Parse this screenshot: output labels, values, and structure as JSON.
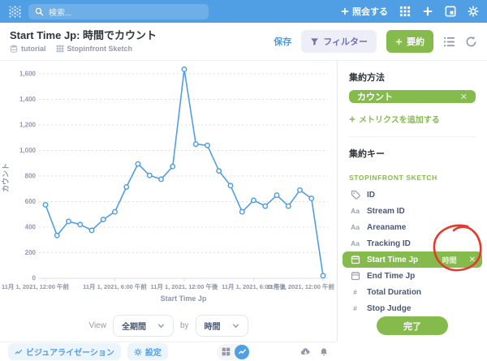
{
  "header": {
    "search_placeholder": "検索...",
    "new_question_label": "照会する"
  },
  "title_bar": {
    "title": "Start Time Jp: 時間でカウント",
    "database": "tutorial",
    "table": "Stopinfront Sketch",
    "save_label": "保存",
    "filter_label": "フィルター",
    "summarize_label": "要約"
  },
  "chart_data": {
    "type": "line",
    "title": "",
    "xlabel": "Start Time Jp",
    "ylabel": "カウント",
    "x_tick_labels": [
      "11月 1, 2021, 12:00 午前",
      "11月 1, 2021, 6:00 午前",
      "11月 1, 2021, 12:00 午後",
      "11月 1, 2021, 6:00 午後",
      "11月 2, 2021, 12:00 午前"
    ],
    "x_tick_indices": [
      0,
      6,
      12,
      18,
      24
    ],
    "y_ticks": [
      0,
      200,
      400,
      600,
      800,
      1000,
      1200,
      1400,
      1600
    ],
    "ylim": [
      0,
      1700
    ],
    "grid": "dashed-horizontal",
    "line_color": "#509EE3",
    "marker": "open-circle",
    "values": [
      575,
      335,
      445,
      420,
      375,
      460,
      520,
      715,
      895,
      805,
      775,
      875,
      1635,
      1050,
      1040,
      840,
      725,
      520,
      610,
      565,
      650,
      565,
      690,
      625,
      20
    ]
  },
  "view_controls": {
    "view_label": "View",
    "range_value": "全期間",
    "by_label": "by",
    "granularity_value": "時間"
  },
  "bottom_bar": {
    "visualization_label": "ビジュアライゼーション",
    "settings_label": "設定"
  },
  "sidebar": {
    "aggregation_heading": "集約方法",
    "aggregation_value": "カウント",
    "add_metric_label": "メトリクスを追加する",
    "groupby_heading": "集約キー",
    "table_heading": "STOPINFRONT SKETCH",
    "fields": [
      {
        "label": "ID",
        "icon": "tag",
        "selected": false
      },
      {
        "label": "Stream ID",
        "icon": "text",
        "selected": false
      },
      {
        "label": "Areaname",
        "icon": "text",
        "selected": false
      },
      {
        "label": "Tracking ID",
        "icon": "text",
        "selected": false
      },
      {
        "label": "Start Time Jp",
        "icon": "calendar",
        "selected": true,
        "granularity": "時間"
      },
      {
        "label": "End Time Jp",
        "icon": "calendar",
        "selected": false
      },
      {
        "label": "Total Duration",
        "icon": "number",
        "selected": false
      },
      {
        "label": "Stop Judge",
        "icon": "number",
        "selected": false
      }
    ],
    "done_label": "完了"
  },
  "annotation": {
    "shape": "hand-drawn-circle",
    "color": "#E5392B",
    "target": "Start Time Jp granularity (時間) chip"
  },
  "colors": {
    "brand_blue": "#509EE3",
    "accent_green": "#84BB4C",
    "filter_purple": "#7172AD",
    "muted_text": "#949AAB"
  },
  "icons": {
    "logo": "metabase-dots",
    "search": "magnifier",
    "grid": "nine-squares",
    "plus": "plus",
    "browse": "window-with-square",
    "settings": "gear",
    "database": "cylinder",
    "table": "grid",
    "filter": "funnel",
    "notebook": "bulleted-list",
    "refresh": "circular-arrow",
    "download": "cloud-arrow",
    "alerts": "bell",
    "chart": "zigzag-line"
  }
}
